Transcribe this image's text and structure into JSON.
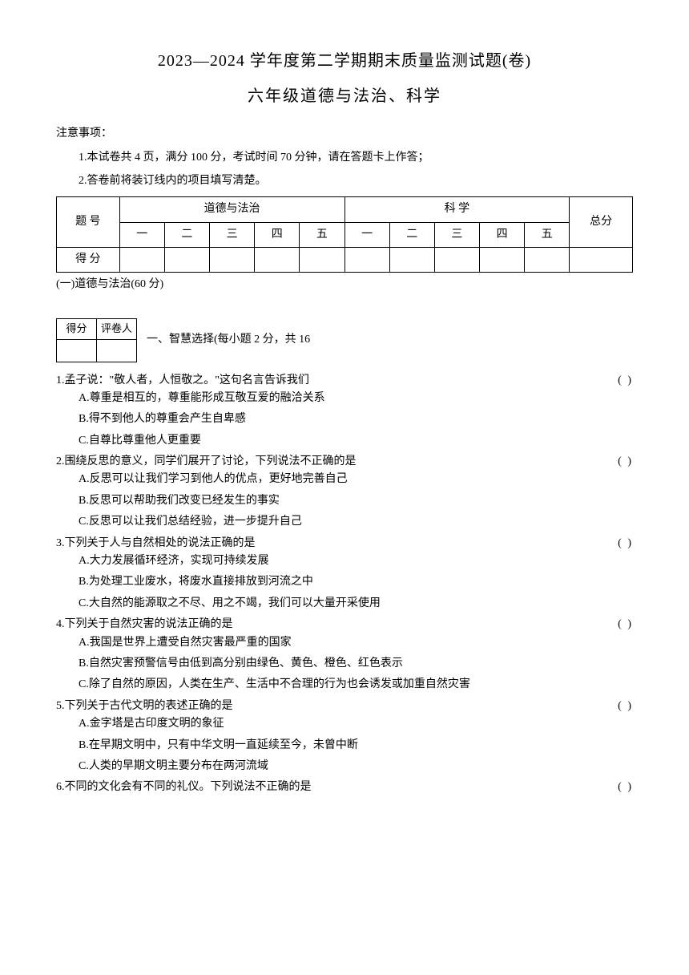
{
  "header": {
    "title_main": "2023—2024 学年度第二学期期末质量监测试题(卷)",
    "title_sub": "六年级道德与法治、科学"
  },
  "notice": {
    "label": "注意事项：",
    "items": [
      "1.本试卷共 4 页，满分 100 分，考试时间 70 分钟，请在答题卡上作答；",
      "2.答卷前将装订线内的项目填写清楚。"
    ]
  },
  "score_table": {
    "row_label_1": "题  号",
    "row_label_2": "得  分",
    "subject1": "道德与法治",
    "subject2": "科  学",
    "total": "总分",
    "sections": [
      "一",
      "二",
      "三",
      "四",
      "五"
    ]
  },
  "section1": {
    "header": "(一)道德与法治(60 分)"
  },
  "mini_score": {
    "col1": "得分",
    "col2": "评卷人"
  },
  "part1": {
    "title": "一、智慧选择(每小题 2 分，共 16"
  },
  "bracket_text": "(     )",
  "questions": [
    {
      "stem": "1.孟子说：\"敬人者，人恒敬之。\"这句名言告诉我们",
      "has_bracket": true,
      "options": [
        "A.尊重是相互的，尊重能形成互敬互爱的融洽关系",
        "B.得不到他人的尊重会产生自卑感",
        "C.自尊比尊重他人更重要"
      ]
    },
    {
      "stem": "2.围绕反思的意义，同学们展开了讨论，下列说法不正确的是",
      "has_bracket": true,
      "options": [
        "A.反思可以让我们学习到他人的优点，更好地完善自己",
        "B.反思可以帮助我们改变已经发生的事实",
        "C.反思可以让我们总结经验，进一步提升自己"
      ]
    },
    {
      "stem": "3.下列关于人与自然相处的说法正确的是",
      "has_bracket": true,
      "options": [
        "A.大力发展循环经济，实现可持续发展",
        "B.为处理工业废水，将废水直接排放到河流之中",
        "C.大自然的能源取之不尽、用之不竭，我们可以大量开采使用"
      ]
    },
    {
      "stem": "4.下列关于自然灾害的说法正确的是",
      "has_bracket": true,
      "options": [
        "A.我国是世界上遭受自然灾害最严重的国家",
        "B.自然灾害预警信号由低到高分别由绿色、黄色、橙色、红色表示",
        "C.除了自然的原因，人类在生产、生活中不合理的行为也会诱发或加重自然灾害"
      ]
    },
    {
      "stem": "5.下列关于古代文明的表述正确的是",
      "has_bracket": true,
      "options": [
        "A.金字塔是古印度文明的象征",
        "B.在早期文明中，只有中华文明一直延续至今，未曾中断",
        "C.人类的早期文明主要分布在两河流域"
      ]
    },
    {
      "stem": "6.不同的文化会有不同的礼仪。下列说法不正确的是",
      "has_bracket": true,
      "options": []
    }
  ]
}
